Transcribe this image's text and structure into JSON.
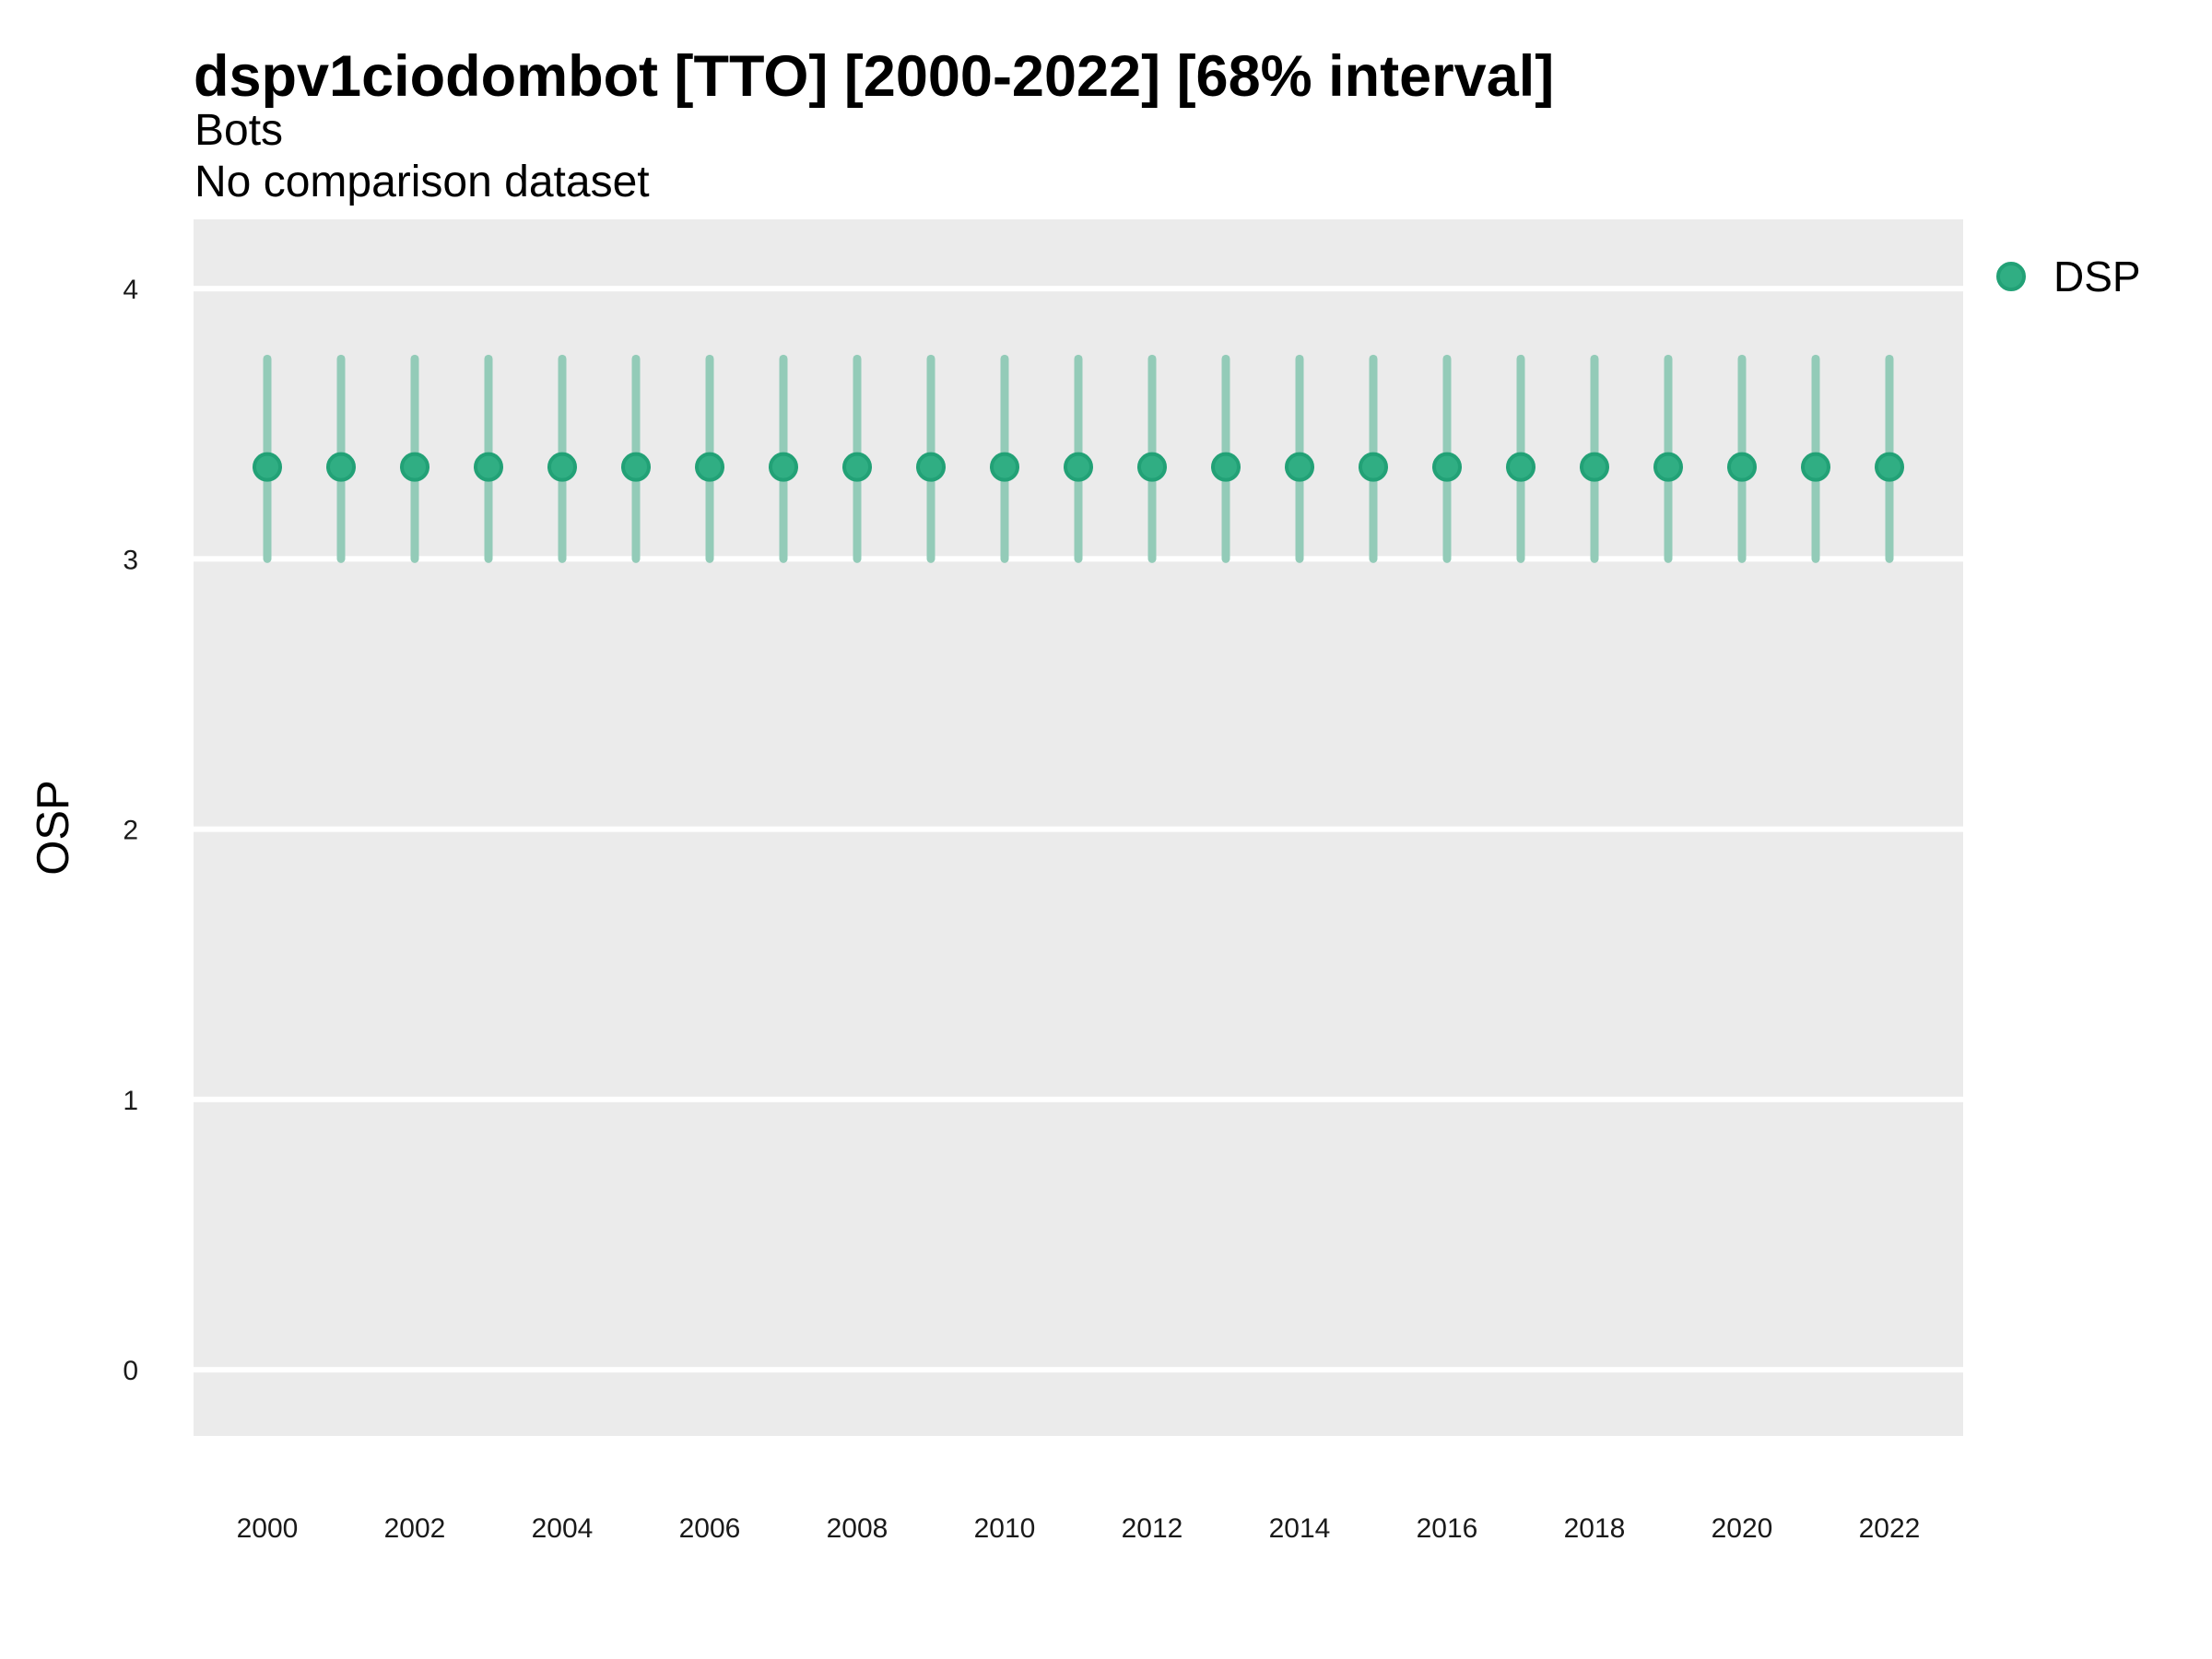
{
  "colors": {
    "panel_bg": "#EBEBEB",
    "grid": "#FFFFFF",
    "point_fill": "#30ae83",
    "point_stroke": "#22a176",
    "interval_bar": "#93cbb8",
    "text": "#000000"
  },
  "legend": {
    "items": [
      {
        "label": "DSP",
        "color": "#30ae83"
      }
    ]
  },
  "chart_data": {
    "type": "pointrange",
    "title": "dspv1ciodombot [TTO] [2000-2022] [68% interval]",
    "subtitle": [
      "Bots",
      "No comparison dataset"
    ],
    "xlabel": "",
    "ylabel": "OSP",
    "interval": "68%",
    "legend_position": "right-top",
    "grid": "horizontal-major-only",
    "x": [
      2000,
      2001,
      2002,
      2003,
      2004,
      2005,
      2006,
      2007,
      2008,
      2009,
      2010,
      2011,
      2012,
      2013,
      2014,
      2015,
      2016,
      2017,
      2018,
      2019,
      2020,
      2021,
      2022
    ],
    "series": [
      {
        "name": "DSP",
        "center": [
          3.34,
          3.34,
          3.34,
          3.34,
          3.34,
          3.34,
          3.34,
          3.34,
          3.34,
          3.34,
          3.34,
          3.34,
          3.34,
          3.34,
          3.34,
          3.34,
          3.34,
          3.34,
          3.34,
          3.34,
          3.34,
          3.34,
          3.34
        ],
        "low": [
          3.0,
          3.0,
          3.0,
          3.0,
          3.0,
          3.0,
          3.0,
          3.0,
          3.0,
          3.0,
          3.0,
          3.0,
          3.0,
          3.0,
          3.0,
          3.0,
          3.0,
          3.0,
          3.0,
          3.0,
          3.0,
          3.0,
          3.0
        ],
        "high": [
          3.74,
          3.74,
          3.74,
          3.74,
          3.74,
          3.74,
          3.74,
          3.74,
          3.74,
          3.74,
          3.74,
          3.74,
          3.74,
          3.74,
          3.74,
          3.74,
          3.74,
          3.74,
          3.74,
          3.74,
          3.74,
          3.74,
          3.74
        ]
      }
    ],
    "x_ticks": [
      2000,
      2002,
      2004,
      2006,
      2008,
      2010,
      2012,
      2014,
      2016,
      2018,
      2020,
      2022
    ],
    "y_ticks": [
      0,
      1,
      2,
      3,
      4
    ],
    "xlim": [
      1999,
      2023
    ],
    "ylim": [
      -0.245,
      4.256
    ]
  }
}
